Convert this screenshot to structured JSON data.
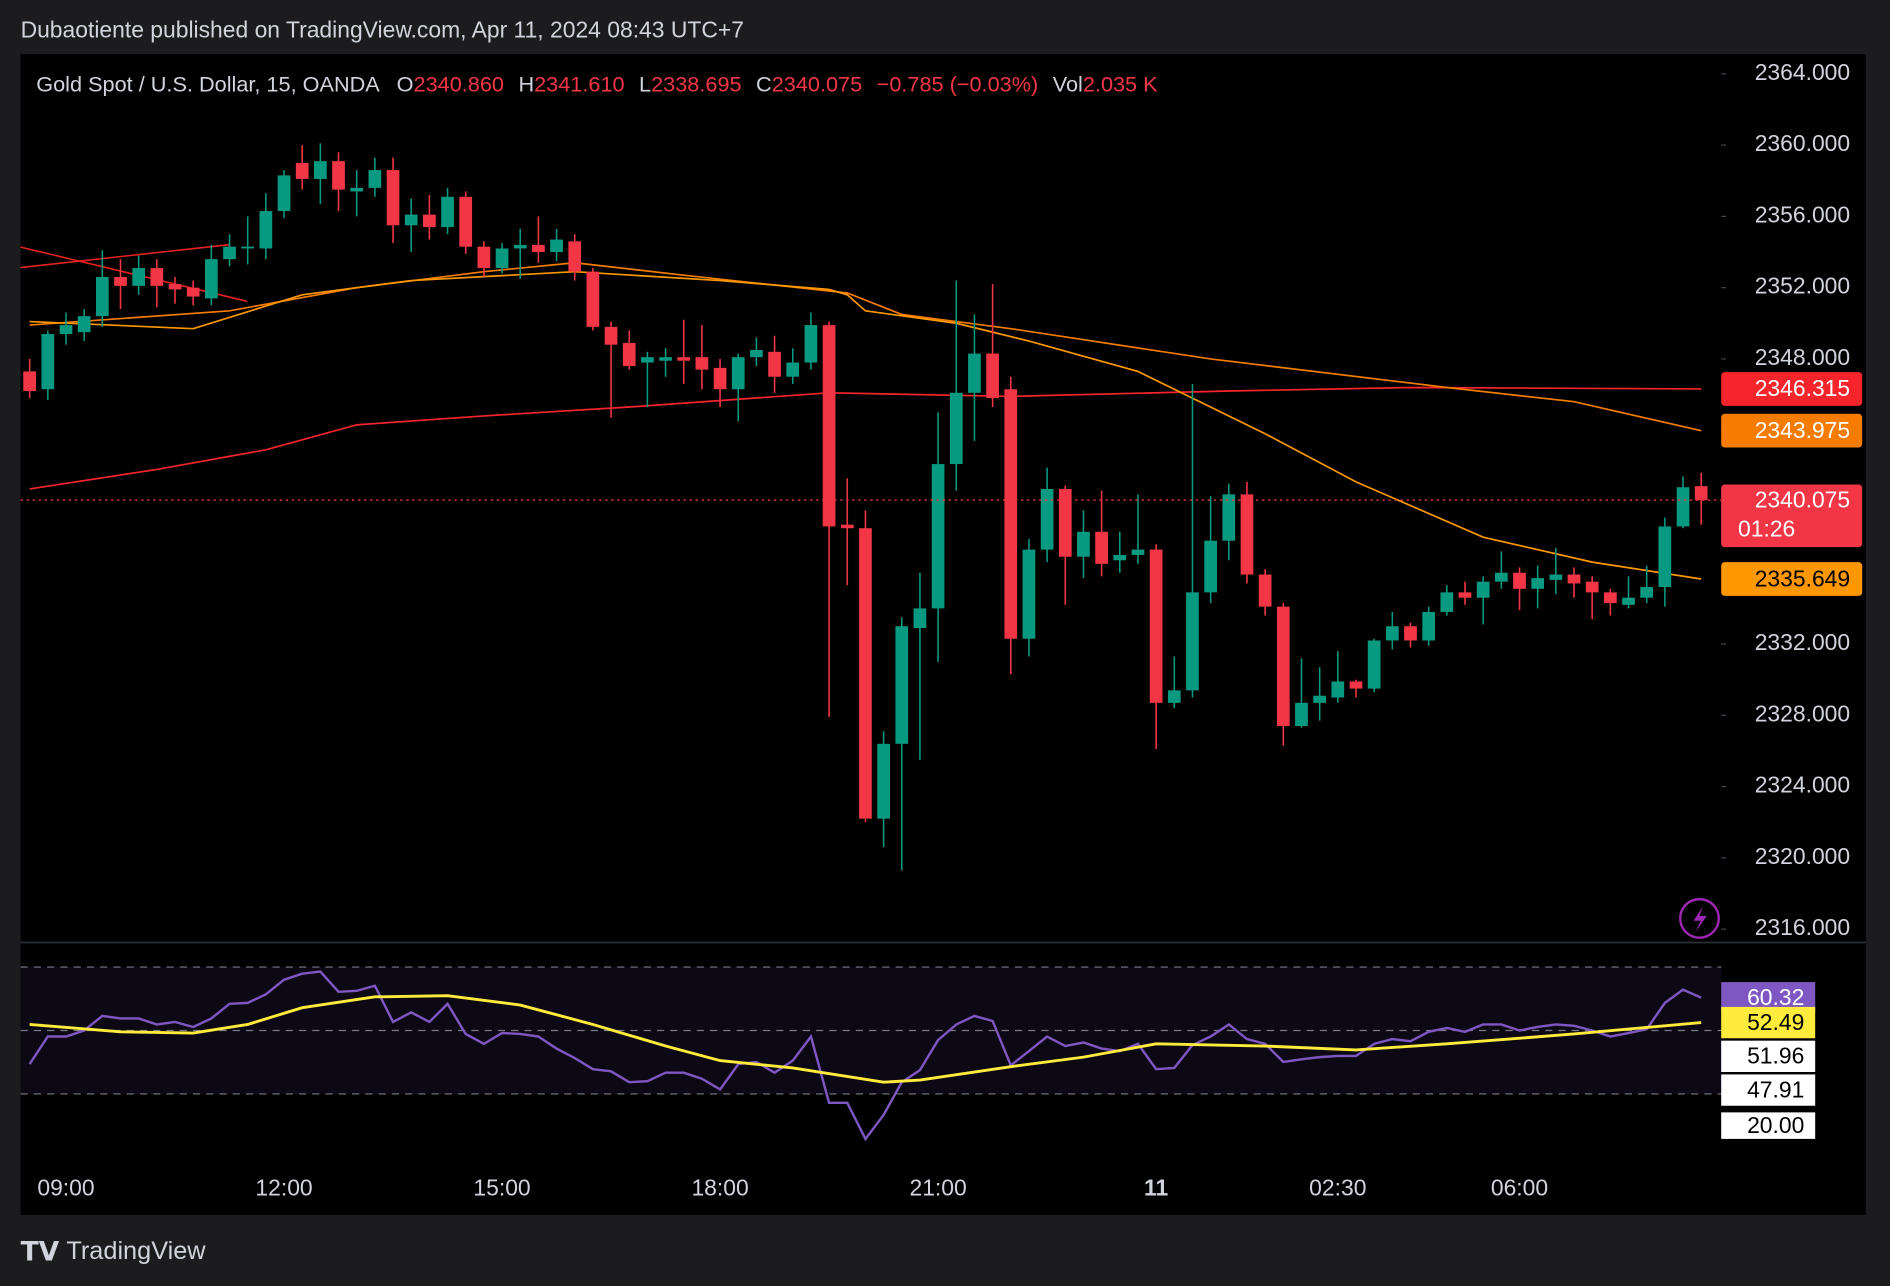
{
  "header": {
    "publisher": "Dubaotiente published on TradingView.com, Apr 11, 2024 08:43 UTC+7"
  },
  "footer": {
    "brand": "TradingView"
  },
  "chart_data": [
    {
      "type": "candlestick",
      "title": "Gold Spot / U.S. Dollar, 15, OANDA",
      "legend": [
        {
          "key": "O",
          "value": 2340.86,
          "label": "2340.860"
        },
        {
          "key": "H",
          "value": 2341.61,
          "label": "2341.610"
        },
        {
          "key": "L",
          "value": 2338.695,
          "label": "2338.695"
        },
        {
          "key": "C",
          "value": 2340.075,
          "label": "2340.075"
        }
      ],
      "change": "−0.785 (−0.03%)",
      "volume": {
        "key": "Vol",
        "label": "2.035 K"
      },
      "countdown": "01:26",
      "up_color": "#089981",
      "down_color": "#f23645",
      "categories": [
        null,
        null,
        "09:00",
        null,
        null,
        null,
        null,
        null,
        null,
        null,
        null,
        null,
        null,
        null,
        "12:00",
        null,
        null,
        null,
        null,
        null,
        null,
        null,
        null,
        null,
        null,
        null,
        "15:00",
        null,
        null,
        null,
        null,
        null,
        null,
        null,
        null,
        null,
        null,
        null,
        "18:00",
        null,
        null,
        null,
        null,
        null,
        null,
        null,
        null,
        null,
        null,
        null,
        "21:00",
        null,
        null,
        null,
        null,
        null,
        null,
        null,
        null,
        null,
        null,
        null,
        "11",
        null,
        null,
        null,
        null,
        null,
        null,
        null,
        null,
        null,
        "02:30",
        null,
        null,
        null,
        null,
        null,
        null,
        null,
        null,
        null,
        "06:00",
        null,
        null,
        null,
        null,
        null,
        null,
        null,
        null,
        null,
        null
      ],
      "open": [
        2347.3,
        2346.3,
        2349.4,
        2349.5,
        2350.4,
        2352.6,
        2352.1,
        2353.1,
        2352.2,
        2352.0,
        2351.4,
        2353.6,
        2354.2,
        2354.2,
        2356.3,
        2359.0,
        2358.1,
        2359.1,
        2357.4,
        2357.6,
        2358.6,
        2355.5,
        2356.1,
        2355.4,
        2357.1,
        2354.3,
        2353.1,
        2354.2,
        2354.4,
        2354.0,
        2354.6,
        2352.9,
        2349.8,
        2348.9,
        2347.8,
        2347.9,
        2348.1,
        2348.1,
        2347.5,
        2346.3,
        2348.1,
        2348.4,
        2347.0,
        2347.8,
        2349.9,
        2338.7,
        2338.5,
        2322.2,
        2326.4,
        2332.9,
        2334.0,
        2342.1,
        2346.1,
        2348.3,
        2346.3,
        2332.3,
        2337.3,
        2340.7,
        2336.9,
        2338.3,
        2336.7,
        2337.0,
        2337.3,
        2328.7,
        2329.4,
        2334.9,
        2337.8,
        2340.4,
        2335.9,
        2334.1,
        2327.4,
        2328.7,
        2329.0,
        2329.9,
        2329.5,
        2332.2,
        2333.0,
        2332.2,
        2333.8,
        2334.9,
        2334.6,
        2335.5,
        2336.0,
        2335.1,
        2335.6,
        2335.9,
        2335.5,
        2334.9,
        2334.2,
        2334.6,
        2335.2,
        2338.6,
        2340.86
      ],
      "high": [
        2348.0,
        2349.6,
        2350.6,
        2350.8,
        2354.1,
        2353.6,
        2353.8,
        2353.6,
        2352.6,
        2352.4,
        2354.4,
        2355.0,
        2356.0,
        2357.3,
        2358.6,
        2360.0,
        2360.1,
        2359.6,
        2358.6,
        2359.3,
        2359.3,
        2357.0,
        2357.2,
        2357.6,
        2357.4,
        2354.6,
        2354.5,
        2355.3,
        2356.0,
        2355.3,
        2355.0,
        2353.1,
        2350.1,
        2349.6,
        2348.4,
        2348.6,
        2350.2,
        2349.9,
        2348.0,
        2348.3,
        2349.2,
        2349.3,
        2348.6,
        2350.6,
        2350.1,
        2341.3,
        2339.5,
        2327.1,
        2333.5,
        2336.0,
        2345.0,
        2352.4,
        2350.5,
        2352.2,
        2347.0,
        2337.9,
        2341.9,
        2340.9,
        2339.5,
        2340.6,
        2338.3,
        2340.4,
        2337.6,
        2331.3,
        2346.6,
        2340.3,
        2341.0,
        2341.1,
        2336.2,
        2334.3,
        2331.2,
        2330.7,
        2331.6,
        2330.0,
        2332.3,
        2333.8,
        2333.2,
        2334.1,
        2335.3,
        2335.5,
        2335.8,
        2337.2,
        2336.3,
        2336.4,
        2337.4,
        2336.3,
        2335.8,
        2335.1,
        2335.8,
        2336.4,
        2339.1,
        2341.4,
        2341.61
      ],
      "low": [
        2345.8,
        2345.7,
        2348.8,
        2349.0,
        2349.8,
        2350.8,
        2351.6,
        2350.9,
        2351.1,
        2351.0,
        2351.0,
        2353.2,
        2353.3,
        2353.6,
        2355.9,
        2357.5,
        2356.7,
        2356.3,
        2356.0,
        2357.1,
        2354.5,
        2354.0,
        2354.7,
        2355.0,
        2353.9,
        2352.6,
        2352.8,
        2352.5,
        2353.4,
        2353.5,
        2352.4,
        2349.6,
        2344.7,
        2347.4,
        2345.3,
        2347.0,
        2346.6,
        2346.3,
        2345.3,
        2344.5,
        2347.6,
        2346.1,
        2346.6,
        2347.4,
        2327.9,
        2335.3,
        2322.0,
        2320.6,
        2319.3,
        2325.5,
        2331.0,
        2340.6,
        2343.4,
        2345.3,
        2330.3,
        2331.3,
        2336.6,
        2334.2,
        2335.7,
        2335.8,
        2336.0,
        2336.5,
        2326.1,
        2328.4,
        2329.0,
        2334.3,
        2336.7,
        2335.4,
        2333.6,
        2326.3,
        2327.3,
        2327.7,
        2328.7,
        2329.0,
        2329.3,
        2331.7,
        2331.8,
        2331.9,
        2333.6,
        2334.2,
        2333.1,
        2335.1,
        2333.9,
        2334.0,
        2334.8,
        2334.6,
        2333.4,
        2333.6,
        2334.0,
        2334.3,
        2334.1,
        2338.5,
        2338.695
      ],
      "close": [
        2346.2,
        2349.4,
        2349.9,
        2350.4,
        2352.6,
        2352.1,
        2353.1,
        2352.1,
        2351.9,
        2351.5,
        2353.6,
        2354.3,
        2354.3,
        2356.3,
        2358.3,
        2358.1,
        2359.1,
        2357.5,
        2357.6,
        2358.6,
        2355.5,
        2356.1,
        2355.4,
        2357.1,
        2354.3,
        2353.1,
        2354.2,
        2354.4,
        2354.0,
        2354.7,
        2352.9,
        2349.8,
        2348.8,
        2347.6,
        2348.1,
        2348.1,
        2347.9,
        2347.4,
        2346.3,
        2348.1,
        2348.5,
        2347.0,
        2347.8,
        2349.9,
        2338.6,
        2338.5,
        2322.2,
        2326.4,
        2333.0,
        2334.0,
        2342.1,
        2346.1,
        2348.3,
        2345.8,
        2332.3,
        2337.3,
        2340.7,
        2336.9,
        2338.3,
        2336.5,
        2337.0,
        2337.3,
        2328.7,
        2329.4,
        2334.9,
        2337.8,
        2340.4,
        2335.9,
        2334.1,
        2327.4,
        2328.7,
        2329.1,
        2329.9,
        2329.5,
        2332.2,
        2333.0,
        2332.2,
        2333.8,
        2334.9,
        2334.6,
        2335.5,
        2336.0,
        2335.1,
        2335.7,
        2335.9,
        2335.4,
        2334.9,
        2334.3,
        2334.6,
        2335.2,
        2338.6,
        2340.8,
        2340.075
      ],
      "series": [
        {
          "color": "#f7252b",
          "x": [
            0,
            7,
            13,
            18,
            25,
            33,
            44,
            54,
            66,
            76,
            92
          ],
          "values": [
            2340.7,
            2341.8,
            2342.9,
            2344.3,
            2344.8,
            2345.3,
            2346.1,
            2345.9,
            2346.2,
            2346.4,
            2346.315
          ]
        },
        {
          "color": "#f57c00",
          "x": [
            0,
            11,
            18,
            25,
            30,
            36,
            45,
            48,
            54,
            65,
            78,
            85,
            92
          ],
          "values": [
            2349.9,
            2350.7,
            2352.0,
            2352.9,
            2353.4,
            2352.7,
            2351.7,
            2350.5,
            2349.7,
            2348.0,
            2346.4,
            2345.6,
            2343.975
          ]
        },
        {
          "color": "#ff9800",
          "x": [
            0,
            9,
            15,
            21,
            30,
            38,
            44,
            45,
            46,
            51,
            55,
            61,
            68,
            73,
            80,
            86,
            92
          ],
          "values": [
            2350.1,
            2349.7,
            2351.6,
            2352.4,
            2352.9,
            2352.4,
            2351.9,
            2351.6,
            2350.7,
            2350.0,
            2349.0,
            2347.3,
            2343.8,
            2341.1,
            2338.0,
            2336.6,
            2335.649
          ]
        }
      ],
      "ylim": [
        2315.25,
        2365.1
      ],
      "xlim": [
        -0.5,
        93.1
      ],
      "yticks": [
        {
          "value": 2316,
          "label": "2316.000"
        },
        {
          "value": 2320,
          "label": "2320.000"
        },
        {
          "value": 2324,
          "label": "2324.000"
        },
        {
          "value": 2328,
          "label": "2328.000"
        },
        {
          "value": 2332,
          "label": "2332.000"
        },
        {
          "value": 2336,
          "label": "2336.000"
        },
        {
          "value": 2340,
          "label": "2340.000"
        },
        {
          "value": 2344,
          "label": "2344.000"
        },
        {
          "value": 2348,
          "label": "2348.000"
        },
        {
          "value": 2352,
          "label": "2352.000"
        },
        {
          "value": 2356,
          "label": "2356.000"
        },
        {
          "value": 2360,
          "label": "2360.000"
        },
        {
          "value": 2364,
          "label": "2364.000"
        }
      ],
      "grid": false
    },
    {
      "type": "line",
      "ylim": [
        10.1,
        76.6
      ],
      "xlim": [
        -0.5,
        93.1
      ],
      "levels": [
        70,
        50,
        30
      ],
      "yticks": [
        {
          "value": 20,
          "label": "20.00"
        }
      ],
      "band_values": [
        51.96,
        47.91
      ],
      "series": [
        {
          "color": "#7e57c2",
          "values": [
            39.4,
            48.1,
            48.1,
            50.0,
            54.6,
            53.8,
            53.8,
            51.9,
            52.7,
            51.1,
            53.8,
            58.4,
            58.7,
            61.4,
            66.0,
            67.9,
            68.6,
            62.2,
            62.5,
            64.1,
            52.7,
            55.7,
            52.7,
            58.4,
            48.9,
            45.8,
            49.2,
            48.9,
            48.1,
            44.3,
            41.3,
            37.8,
            37.1,
            33.7,
            34.0,
            36.7,
            36.7,
            34.8,
            31.4,
            39.4,
            40.1,
            36.7,
            40.5,
            48.1,
            27.2,
            27.2,
            15.8,
            23.4,
            33.7,
            37.5,
            47.0,
            51.9,
            54.6,
            53.0,
            39.0,
            43.5,
            48.1,
            45.1,
            46.2,
            44.3,
            43.5,
            45.8,
            37.8,
            38.2,
            45.4,
            48.1,
            51.9,
            47.3,
            45.8,
            40.1,
            40.9,
            41.6,
            42.0,
            42.0,
            45.8,
            47.3,
            46.6,
            49.6,
            50.8,
            49.6,
            51.9,
            51.9,
            50.0,
            51.1,
            51.9,
            51.5,
            50.0,
            48.1,
            49.2,
            50.4,
            58.7,
            62.9,
            60.32
          ]
        },
        {
          "color": "#ffeb3b",
          "x": [
            0,
            5,
            9,
            12,
            15,
            19,
            23,
            27,
            31,
            35,
            38,
            42,
            47,
            49,
            54,
            58,
            62,
            68,
            73,
            78,
            85,
            92
          ],
          "values": [
            51.9,
            49.6,
            49.2,
            51.9,
            57.2,
            60.6,
            61.0,
            58.0,
            51.9,
            45.1,
            40.5,
            38.2,
            33.7,
            34.4,
            38.6,
            41.6,
            45.8,
            45.1,
            43.9,
            45.8,
            48.9,
            52.49
          ]
        }
      ]
    }
  ]
}
